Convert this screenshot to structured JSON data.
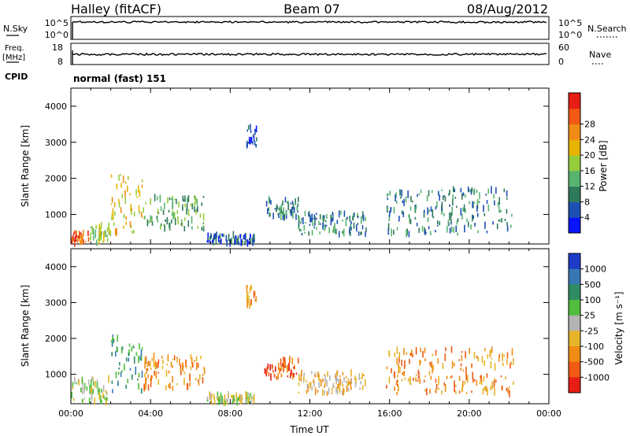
{
  "header": {
    "station": "Halley (fitACF)",
    "beam": "Beam 07",
    "date": "08/Aug/2012"
  },
  "strips": {
    "nsky_label": "N.Sky",
    "nsky_ticks": [
      "10^5",
      "10^0"
    ],
    "nsearch_label": "N.Search",
    "nsearch_ticks": [
      "10^5",
      "10^0"
    ],
    "freq_label_line1": "Freq.",
    "freq_label_line2": "[MHz]",
    "freq_ticks": [
      "18",
      "8"
    ],
    "nave_label": "Nave",
    "nave_ticks": [
      "60",
      "0"
    ],
    "cpid_label": "CPID",
    "cpid_value": "normal (fast) 151"
  },
  "chart_data": [
    {
      "type": "heatmap",
      "panel": "power",
      "ylabel": "Slant Range [km]",
      "yticks": [
        "1000",
        "2000",
        "3000",
        "4000"
      ],
      "ylim": [
        180,
        4500
      ],
      "xlim": [
        0,
        24
      ],
      "colorbar_label": "Power [dB]",
      "colorbar_ticks": [
        "4",
        "8",
        "12",
        "16",
        "20",
        "24",
        "28"
      ],
      "colors": [
        "#0a14ff",
        "#1e50b4",
        "#2f7a5c",
        "#58b470",
        "#96cd3c",
        "#e6b400",
        "#f08c14",
        "#f05a14",
        "#e61e14"
      ],
      "echo_regions": [
        {
          "t0": 0.0,
          "t1": 0.9,
          "r0": 200,
          "r1": 520,
          "level": 7
        },
        {
          "t0": 0.9,
          "t1": 2.0,
          "r0": 200,
          "r1": 700,
          "level": 4
        },
        {
          "t0": 2.0,
          "t1": 3.6,
          "r0": 500,
          "r1": 2100,
          "level": 5
        },
        {
          "t0": 3.6,
          "t1": 6.7,
          "r0": 600,
          "r1": 1500,
          "level": 3
        },
        {
          "t0": 6.8,
          "t1": 9.2,
          "r0": 200,
          "r1": 450,
          "level": 1
        },
        {
          "t0": 8.8,
          "t1": 9.3,
          "r0": 2900,
          "r1": 3450,
          "level": 1
        },
        {
          "t0": 9.7,
          "t1": 11.4,
          "r0": 900,
          "r1": 1450,
          "level": 2
        },
        {
          "t0": 11.4,
          "t1": 14.8,
          "r0": 450,
          "r1": 1050,
          "level": 2
        },
        {
          "t0": 15.8,
          "t1": 22.2,
          "r0": 450,
          "r1": 1700,
          "level": 2
        }
      ]
    },
    {
      "type": "heatmap",
      "panel": "velocity",
      "ylabel": "Slant Range [km]",
      "yticks": [
        "1000",
        "2000",
        "3000",
        "4000"
      ],
      "ylim": [
        180,
        4500
      ],
      "xlim": [
        0,
        24
      ],
      "xlabel": "Time UT",
      "xticks": [
        "00:00",
        "04:00",
        "08:00",
        "12:00",
        "16:00",
        "20:00",
        "00:00"
      ],
      "colorbar_label": "Velocity [m s⁻¹]",
      "colorbar_ticks": [
        "1000",
        "500",
        "100",
        "25",
        "-25",
        "-100",
        "-500",
        "-1000"
      ],
      "colors": [
        "#1e3cc8",
        "#3778b4",
        "#2f8c64",
        "#50be3c",
        "#b4b4b4",
        "#e6b428",
        "#f08c14",
        "#f05a14",
        "#e61e14"
      ],
      "echo_regions": [
        {
          "t0": 0.0,
          "t1": 1.9,
          "r0": 200,
          "r1": 900,
          "level": 4
        },
        {
          "t0": 2.0,
          "t1": 3.6,
          "r0": 500,
          "r1": 2100,
          "level": 2
        },
        {
          "t0": 3.6,
          "t1": 6.7,
          "r0": 600,
          "r1": 1500,
          "level": 6
        },
        {
          "t0": 6.8,
          "t1": 9.2,
          "r0": 200,
          "r1": 450,
          "level": 4
        },
        {
          "t0": 8.8,
          "t1": 9.3,
          "r0": 2900,
          "r1": 3450,
          "level": 6
        },
        {
          "t0": 9.7,
          "t1": 11.4,
          "r0": 900,
          "r1": 1450,
          "level": 7
        },
        {
          "t0": 11.4,
          "t1": 14.8,
          "r0": 450,
          "r1": 1050,
          "level": 5
        },
        {
          "t0": 15.8,
          "t1": 22.2,
          "r0": 450,
          "r1": 1700,
          "level": 6
        }
      ]
    }
  ]
}
